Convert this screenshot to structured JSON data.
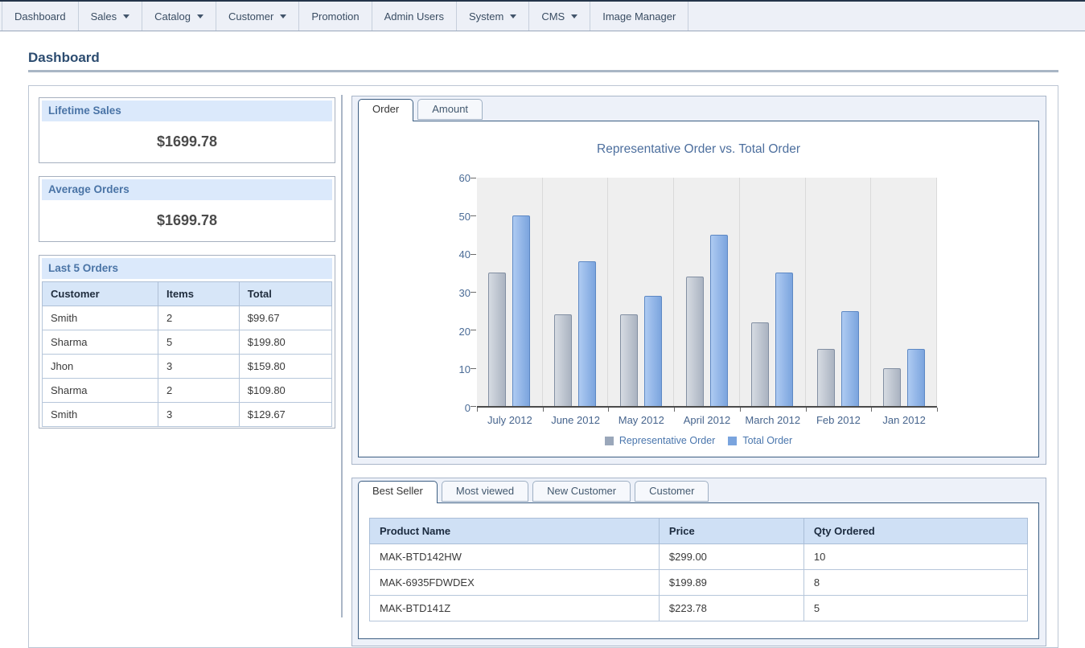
{
  "nav": {
    "items": [
      {
        "label": "Dashboard",
        "dropdown": false
      },
      {
        "label": "Sales",
        "dropdown": true
      },
      {
        "label": "Catalog",
        "dropdown": true
      },
      {
        "label": "Customer",
        "dropdown": true
      },
      {
        "label": "Promotion",
        "dropdown": false
      },
      {
        "label": "Admin Users",
        "dropdown": false
      },
      {
        "label": "System",
        "dropdown": true
      },
      {
        "label": "CMS",
        "dropdown": true
      },
      {
        "label": "Image Manager",
        "dropdown": false
      }
    ]
  },
  "page": {
    "title": "Dashboard"
  },
  "left_panels": {
    "lifetime_sales": {
      "title": "Lifetime Sales",
      "value": "$1699.78"
    },
    "average_orders": {
      "title": "Average Orders",
      "value": "$1699.78"
    },
    "last_orders": {
      "title": "Last 5 Orders",
      "headers": [
        "Customer",
        "Items",
        "Total"
      ],
      "rows": [
        [
          "Smith",
          "2",
          "$99.67"
        ],
        [
          "Sharma",
          "5",
          "$199.80"
        ],
        [
          "Jhon",
          "3",
          "$159.80"
        ],
        [
          "Sharma",
          "2",
          "$109.80"
        ],
        [
          "Smith",
          "3",
          "$129.67"
        ]
      ]
    }
  },
  "chart_panel": {
    "tabs": [
      {
        "label": "Order"
      },
      {
        "label": "Amount"
      }
    ],
    "active_tab": "Order"
  },
  "chart_data": {
    "type": "bar",
    "title": "Representative Order vs. Total Order",
    "categories": [
      "July 2012",
      "June 2012",
      "May 2012",
      "April 2012",
      "March 2012",
      "Feb 2012",
      "Jan 2012"
    ],
    "series": [
      {
        "name": "Representative Order",
        "color": "#9aa7ba",
        "values": [
          35,
          24,
          24,
          34,
          22,
          15,
          10
        ]
      },
      {
        "name": "Total Order",
        "color": "#7aa4de",
        "values": [
          50,
          38,
          29,
          45,
          35,
          25,
          15
        ]
      }
    ],
    "ylim": [
      0,
      60
    ],
    "yticks": [
      0,
      10,
      20,
      30,
      40,
      50,
      60
    ],
    "legend_position": "bottom",
    "grid": "vertical-only",
    "plot_background": "#efefef"
  },
  "bottom_panel": {
    "tabs": [
      {
        "label": "Best Seller"
      },
      {
        "label": "Most viewed"
      },
      {
        "label": "New Customer"
      },
      {
        "label": "Customer"
      }
    ],
    "active_tab": "Best Seller",
    "table": {
      "headers": [
        "Product Name",
        "Price",
        "Qty Ordered"
      ],
      "rows": [
        [
          "MAK-BTD142HW",
          "$299.00",
          "10"
        ],
        [
          "MAK-6935FDWDEX",
          "$199.89",
          "8"
        ],
        [
          "MAK-BTD141Z",
          "$223.78",
          "5"
        ]
      ]
    }
  },
  "colors": {
    "accent_header_bg": "#dbe9fb",
    "table_header_bg": "#cfe0f5",
    "active_tab_border": "#3c5e82",
    "rep_bar": "#9aa7ba",
    "total_bar": "#7aa4de"
  }
}
